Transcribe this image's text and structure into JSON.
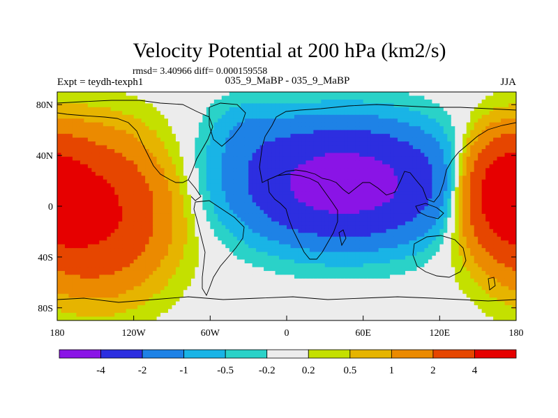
{
  "chart_data": {
    "type": "heatmap",
    "subtype": "filled-contour-map",
    "title": "Velocity Potential at 200 hPa (km2/s)",
    "subtitle_stats": "rmsd= 3.40966 diff= 0.000159558",
    "left_label": "Expt = teydh-texph1",
    "center_label": "035_9_MaBP - 035_9_MaBP",
    "right_label": "JJA",
    "x_ticks": [
      "180",
      "120W",
      "60W",
      "0",
      "60E",
      "120E",
      "180"
    ],
    "x_tick_values": [
      -180,
      -120,
      -60,
      0,
      60,
      120,
      180
    ],
    "y_ticks": [
      "80N",
      "40N",
      "0",
      "40S",
      "80S"
    ],
    "y_tick_values": [
      80,
      40,
      0,
      -40,
      -80
    ],
    "xlim": [
      -180,
      180
    ],
    "ylim": [
      -90,
      90
    ],
    "colorbar": {
      "labels": [
        "-4",
        "-2",
        "-1",
        "-0.5",
        "-0.2",
        "0.2",
        "0.5",
        "1",
        "2",
        "4"
      ],
      "level_values": [
        -4,
        -2,
        -1,
        -0.5,
        -0.2,
        0.2,
        0.5,
        1,
        2,
        4
      ],
      "colors": [
        "#8a14e6",
        "#2d2ee0",
        "#1e82e6",
        "#19b4e6",
        "#2ad2c8",
        "#ececec",
        "#c4e000",
        "#e6b400",
        "#eb8a00",
        "#e64600",
        "#e60000"
      ]
    },
    "field_description": "Large-scale wave-1 pattern: negative centre over Eurasia/Africa (~40E, 20N), positive centres over the central Pacific (~150W, 0) and western Pacific (~165E, 10N)"
  }
}
